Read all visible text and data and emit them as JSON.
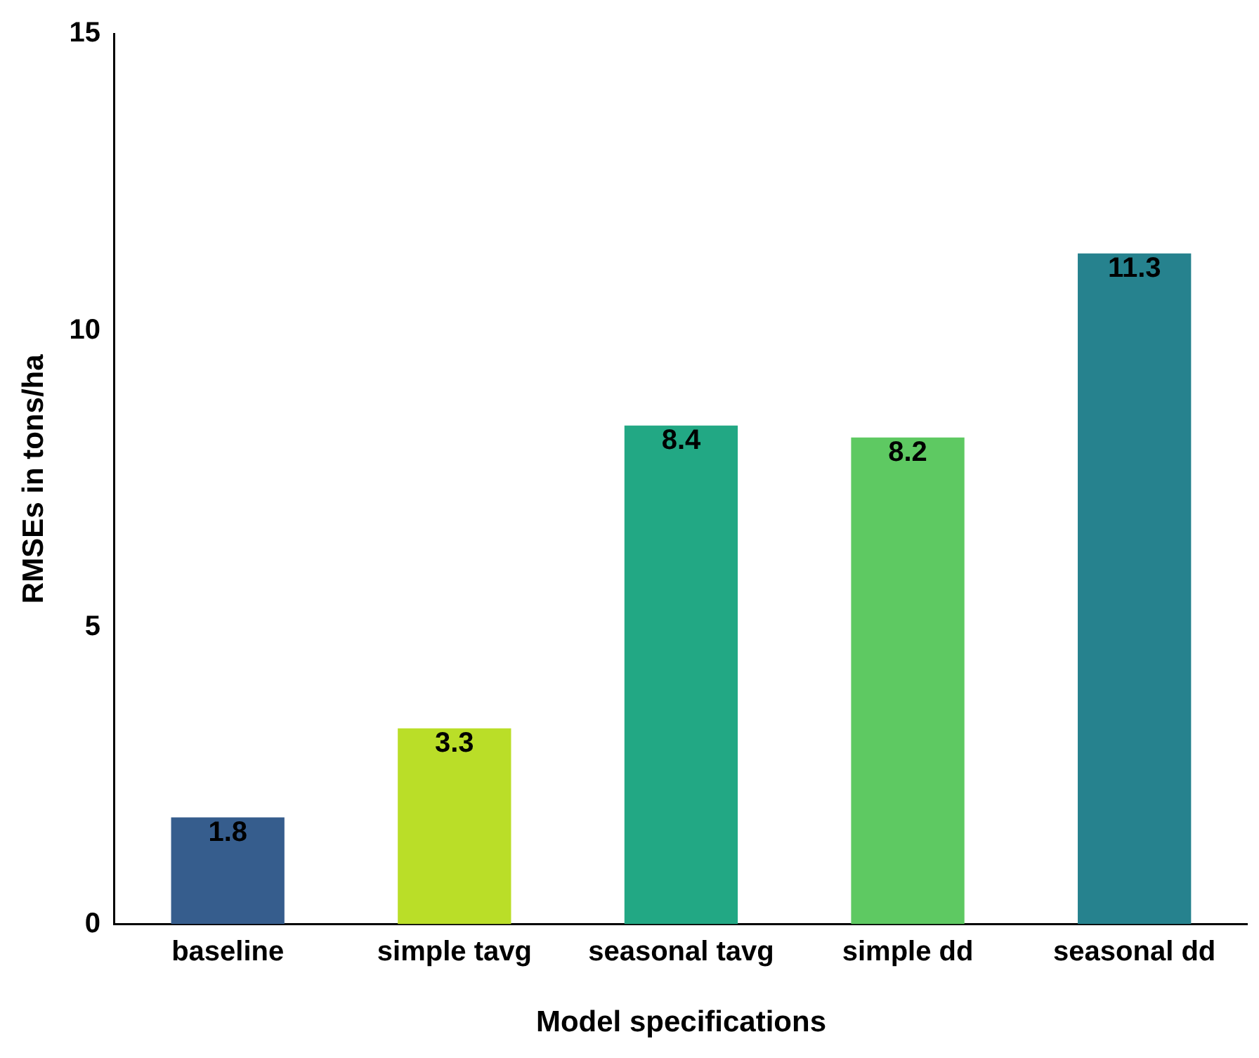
{
  "chart_data": {
    "type": "bar",
    "xlabel": "Model specifications",
    "ylabel": "RMSEs in tons/ha",
    "categories": [
      "baseline",
      "simple tavg",
      "seasonal tavg",
      "simple dd",
      "seasonal dd"
    ],
    "values": [
      1.8,
      3.3,
      8.4,
      8.2,
      11.3
    ],
    "colors": [
      "#365d8d",
      "#bade28",
      "#22a884",
      "#5ec962",
      "#26828e"
    ],
    "ylim": [
      0,
      15
    ],
    "yticks": [
      0,
      5,
      10,
      15
    ],
    "grid": false,
    "legend": false,
    "data_labels": true
  }
}
